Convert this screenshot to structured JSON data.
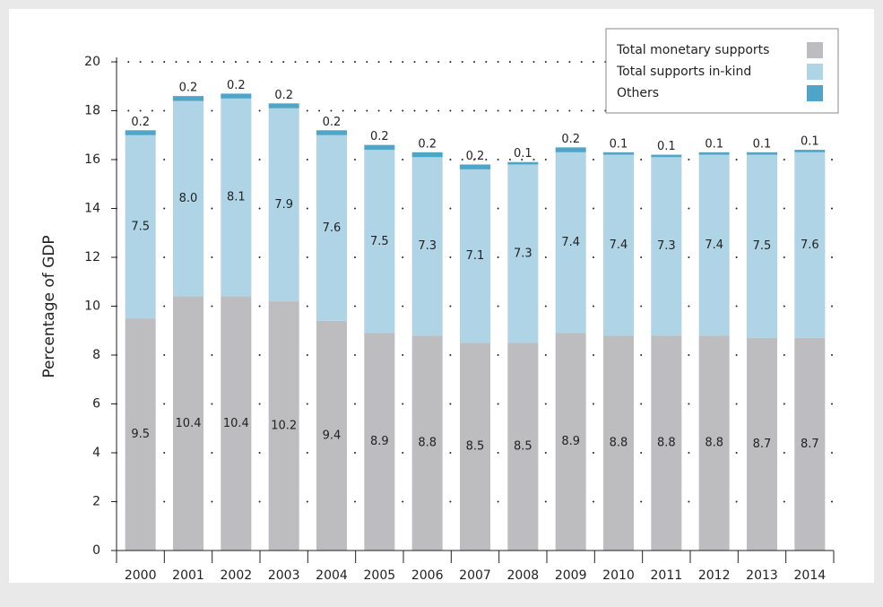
{
  "chart_data": {
    "type": "stacked_bar",
    "y_label": "Percentage of GDP",
    "categories": [
      "2000",
      "2001",
      "2002",
      "2003",
      "2004",
      "2005",
      "2006",
      "2007",
      "2008",
      "2009",
      "2010",
      "2011",
      "2012",
      "2013",
      "2014"
    ],
    "series": [
      {
        "name": "Total monetary supports",
        "color": "#bdbcbf",
        "values": [
          9.5,
          10.4,
          10.4,
          10.2,
          9.4,
          8.9,
          8.8,
          8.5,
          8.5,
          8.9,
          8.8,
          8.8,
          8.8,
          8.7,
          8.7
        ]
      },
      {
        "name": "Total supports in-kind",
        "color": "#aed4e6",
        "values": [
          7.5,
          8,
          8.1,
          7.9,
          7.6,
          7.5,
          7.3,
          7.1,
          7.3,
          7.4,
          7.4,
          7.3,
          7.4,
          7.5,
          7.6
        ],
        "value_labels": [
          "7.5",
          "8.0",
          "8.1",
          "7.9",
          "7.6",
          "7.5",
          "7.3",
          "7.1",
          "7.3",
          "7.4",
          "7.4",
          "7.3",
          "7.4",
          "7.5",
          "7.6"
        ]
      },
      {
        "name": "Others",
        "color": "#4ea5c8",
        "values": [
          0.2,
          0.2,
          0.2,
          0.2,
          0.2,
          0.2,
          0.2,
          0.2,
          0.1,
          0.2,
          0.1,
          0.1,
          0.1,
          0.1,
          0.1
        ]
      }
    ],
    "ylim": [
      0,
      20
    ],
    "yticks": [
      0,
      2,
      4,
      6,
      8,
      10,
      12,
      14,
      16,
      18,
      20
    ],
    "grid": true,
    "legend": "upper right"
  }
}
